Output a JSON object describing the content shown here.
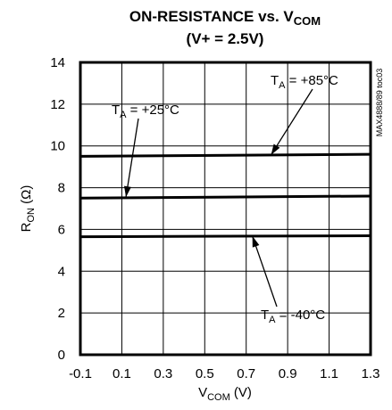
{
  "chart_data": {
    "type": "line",
    "title": {
      "line1_main": "ON-RESISTANCE vs. V",
      "line1_sub": "COM",
      "line2": "(V+ = 2.5V)"
    },
    "xlabel": {
      "main": "V",
      "sub": "COM",
      "unit": " (V)"
    },
    "ylabel": {
      "main": "R",
      "sub": "ON",
      "unit": " (Ω)"
    },
    "xlim": [
      -0.1,
      1.3
    ],
    "ylim": [
      0,
      14
    ],
    "xticks": [
      -0.1,
      0.1,
      0.3,
      0.5,
      0.7,
      0.9,
      1.1,
      1.3
    ],
    "xtick_labels": [
      "-0.1",
      "0.1",
      "0.3",
      "0.5",
      "0.7",
      "0.9",
      "1.1",
      "1.3"
    ],
    "yticks": [
      0,
      2,
      4,
      6,
      8,
      10,
      12,
      14
    ],
    "ytick_labels": [
      "0",
      "2",
      "4",
      "6",
      "8",
      "10",
      "12",
      "14"
    ],
    "grid": true,
    "series": [
      {
        "name": "TA = +85°C",
        "x": [
          -0.1,
          1.3
        ],
        "y": [
          9.5,
          9.6
        ]
      },
      {
        "name": "TA = +25°C",
        "x": [
          -0.1,
          1.3
        ],
        "y": [
          7.5,
          7.6
        ]
      },
      {
        "name": "TA = -40°C",
        "x": [
          -0.1,
          1.3
        ],
        "y": [
          5.65,
          5.7
        ]
      }
    ],
    "annotations": [
      {
        "main": "T",
        "sub": "A",
        "rest": " = +25°C",
        "point_x": 0.12,
        "point_y": 7.55
      },
      {
        "main": "T",
        "sub": "A",
        "rest": " = +85°C",
        "point_x": 0.82,
        "point_y": 9.57
      },
      {
        "main": "T",
        "sub": "A",
        "rest": " = -40°C",
        "point_x": 0.73,
        "point_y": 5.68
      }
    ],
    "figure_id": "MAX4888/89 toc03"
  }
}
